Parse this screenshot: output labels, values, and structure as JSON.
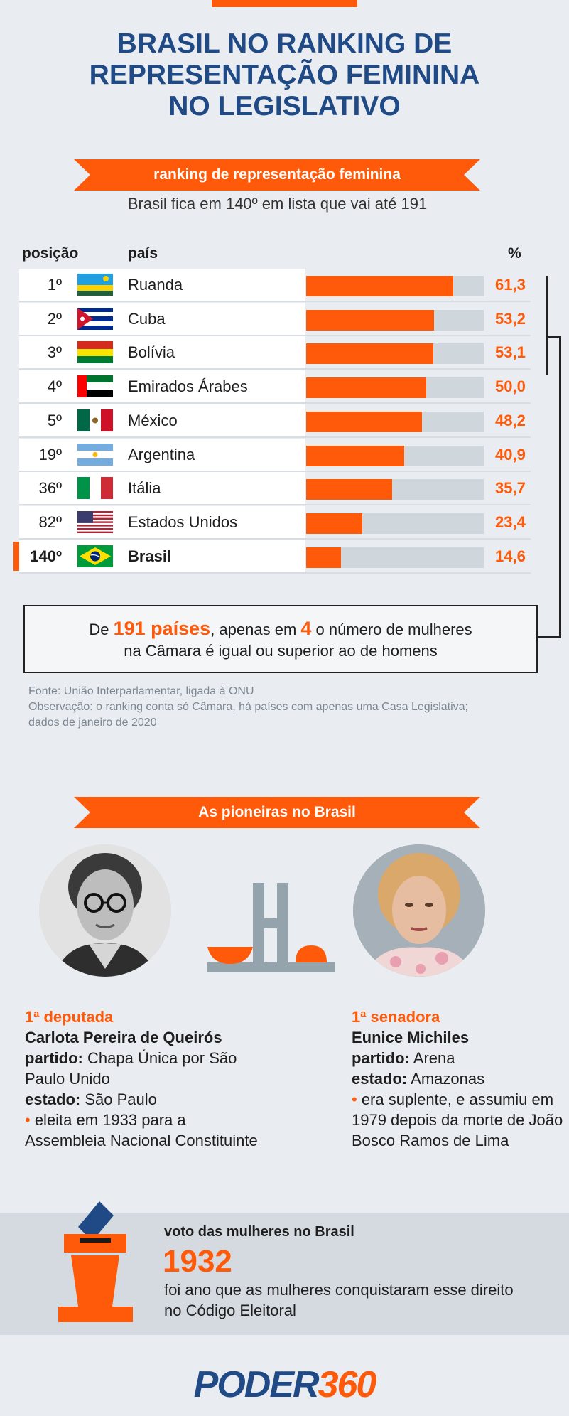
{
  "title": [
    "BRASIL NO RANKING DE",
    "REPRESENTAÇÃO FEMININA",
    "NO LEGISLATIVO"
  ],
  "ranking_ribbon": "ranking de representação feminina",
  "subtitle": "Brasil fica em 140º em lista que vai até 191",
  "columns": {
    "position": "posição",
    "country": "país",
    "percent": "%"
  },
  "rows": [
    {
      "pos": "1º",
      "country": "Ruanda",
      "pct": "61,3",
      "value": 61.3,
      "flag": "rwanda-flag"
    },
    {
      "pos": "2º",
      "country": "Cuba",
      "pct": "53,2",
      "value": 53.2,
      "flag": "cuba-flag"
    },
    {
      "pos": "3º",
      "country": "Bolívia",
      "pct": "53,1",
      "value": 53.1,
      "flag": "bolivia-flag"
    },
    {
      "pos": "4º",
      "country": "Emirados Árabes",
      "pct": "50,0",
      "value": 50.0,
      "flag": "uae-flag"
    },
    {
      "pos": "5º",
      "country": " México",
      "pct": "48,2",
      "value": 48.2,
      "flag": "mexico-flag"
    },
    {
      "pos": "19º",
      "country": "Argentina",
      "pct": "40,9",
      "value": 40.9,
      "flag": "argentina-flag"
    },
    {
      "pos": "36º",
      "country": "Itália",
      "pct": "35,7",
      "value": 35.7,
      "flag": "italy-flag"
    },
    {
      "pos": "82º",
      "country": "Estados Unidos",
      "pct": "23,4",
      "value": 23.4,
      "flag": "usa-flag"
    },
    {
      "pos": "140º",
      "country": "Brasil",
      "pct": "14,6",
      "value": 14.6,
      "flag": "brazil-flag"
    }
  ],
  "callout": {
    "pre": "De ",
    "num1": "191 países",
    "mid": ", apenas em ",
    "num2": "4",
    "post": " o número de mulheres",
    "line2": "na Câmara é igual ou superior ao de homens"
  },
  "source": [
    "Fonte: União Interparlamentar, ligada à ONU",
    "Observação: o ranking conta só Câmara, há países com apenas uma Casa Legislativa;",
    "dados de janeiro de 2020"
  ],
  "pioneers_ribbon": "As pioneiras no Brasil",
  "pioneers": [
    {
      "role": "1ª deputada",
      "name": "Carlota Pereira de Queirós",
      "label1": "partido:",
      "value1": " Chapa Única por São Paulo Unido",
      "label2": "estado:",
      "value2": " São Paulo",
      "note": " eleita em 1933 para a Assembleia Nacional Constituinte"
    },
    {
      "role": "1ª senadora",
      "name": "Eunice Michiles",
      "label1": "partido:",
      "value1": " Arena",
      "label2": "estado:",
      "value2": " Amazonas",
      "note": " era suplente, e assumiu em 1979 depois da morte de João Bosco Ramos de Lima"
    }
  ],
  "bullet": "•",
  "vote": {
    "title": "voto das mulheres no Brasil",
    "year": "1932",
    "text": "foi ano que as mulheres conquistaram esse direito no Código Eleitoral"
  },
  "logo": {
    "part1": "PODER",
    "part2": "360"
  },
  "colors": {
    "accent": "#ff5a0a",
    "navy": "#1f4a85",
    "background": "#e9edf1",
    "track": "#cfd6dc"
  }
}
